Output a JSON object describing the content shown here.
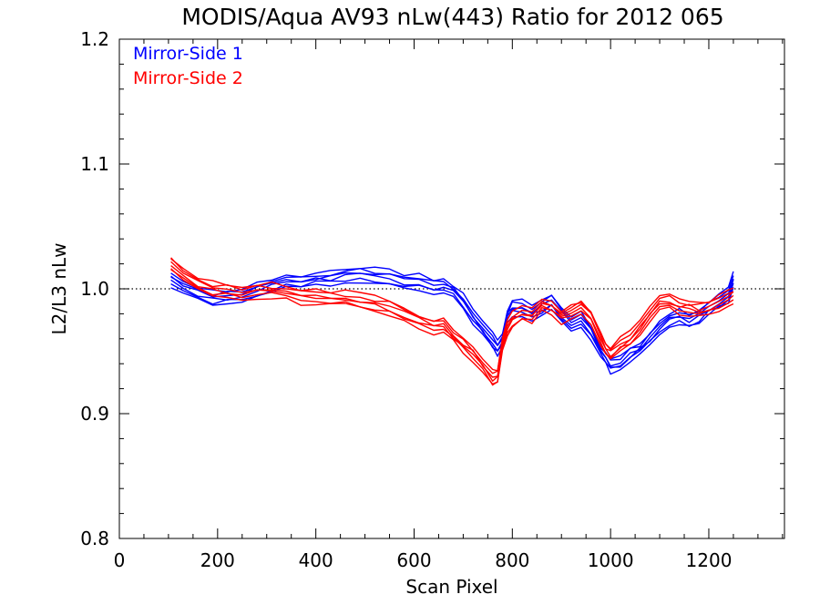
{
  "chart_data": {
    "type": "line",
    "title": "MODIS/Aqua AV93 nLw(443) Ratio for 2012 065",
    "xlabel": "Scan Pixel",
    "ylabel": "L2/L3 nLw",
    "xlim": [
      0,
      1354
    ],
    "ylim": [
      0.8,
      1.2
    ],
    "xticks": [
      "0",
      "200",
      "400",
      "600",
      "800",
      "1000",
      "1200"
    ],
    "yticks": [
      "0.8",
      "0.9",
      "1.0",
      "1.1",
      "1.2"
    ],
    "reference_line": 1.0,
    "legend_position": "top-left",
    "series": [
      {
        "name": "Mirror-Side 1",
        "color": "#0000ff",
        "x": [
          105,
          130,
          160,
          190,
          220,
          250,
          280,
          310,
          340,
          370,
          400,
          430,
          460,
          490,
          520,
          550,
          580,
          610,
          640,
          660,
          680,
          700,
          720,
          740,
          760,
          770,
          780,
          790,
          800,
          820,
          840,
          860,
          880,
          900,
          920,
          940,
          960,
          980,
          990,
          1000,
          1020,
          1040,
          1060,
          1080,
          1100,
          1120,
          1140,
          1160,
          1180,
          1200,
          1220,
          1240,
          1250
        ],
        "values": [
          1.008,
          1.001,
          0.997,
          0.992,
          0.993,
          0.996,
          0.999,
          1.003,
          1.006,
          1.006,
          1.008,
          1.009,
          1.011,
          1.012,
          1.01,
          1.009,
          1.006,
          1.005,
          1.002,
          1.001,
          0.998,
          0.99,
          0.978,
          0.968,
          0.958,
          0.953,
          0.96,
          0.978,
          0.985,
          0.985,
          0.98,
          0.985,
          0.99,
          0.98,
          0.972,
          0.975,
          0.965,
          0.95,
          0.945,
          0.938,
          0.94,
          0.948,
          0.952,
          0.96,
          0.968,
          0.975,
          0.978,
          0.975,
          0.978,
          0.985,
          0.99,
          0.995,
          1.008
        ]
      },
      {
        "name": "Mirror-Side 2",
        "color": "#ff0000",
        "x": [
          105,
          130,
          160,
          190,
          220,
          250,
          280,
          310,
          340,
          370,
          400,
          430,
          460,
          490,
          520,
          550,
          580,
          610,
          640,
          660,
          680,
          700,
          720,
          740,
          760,
          770,
          780,
          790,
          800,
          820,
          840,
          860,
          880,
          900,
          920,
          940,
          960,
          980,
          990,
          1000,
          1020,
          1040,
          1060,
          1080,
          1100,
          1120,
          1140,
          1160,
          1180,
          1200,
          1220,
          1240,
          1250
        ],
        "values": [
          1.02,
          1.011,
          1.004,
          1.0,
          0.999,
          0.997,
          0.999,
          0.999,
          0.997,
          0.994,
          0.993,
          0.993,
          0.992,
          0.99,
          0.988,
          0.985,
          0.98,
          0.974,
          0.97,
          0.972,
          0.963,
          0.955,
          0.948,
          0.938,
          0.928,
          0.93,
          0.955,
          0.968,
          0.975,
          0.98,
          0.978,
          0.988,
          0.985,
          0.978,
          0.98,
          0.985,
          0.978,
          0.96,
          0.952,
          0.948,
          0.955,
          0.96,
          0.968,
          0.98,
          0.988,
          0.99,
          0.985,
          0.985,
          0.983,
          0.985,
          0.988,
          0.993,
          0.995
        ]
      }
    ]
  }
}
